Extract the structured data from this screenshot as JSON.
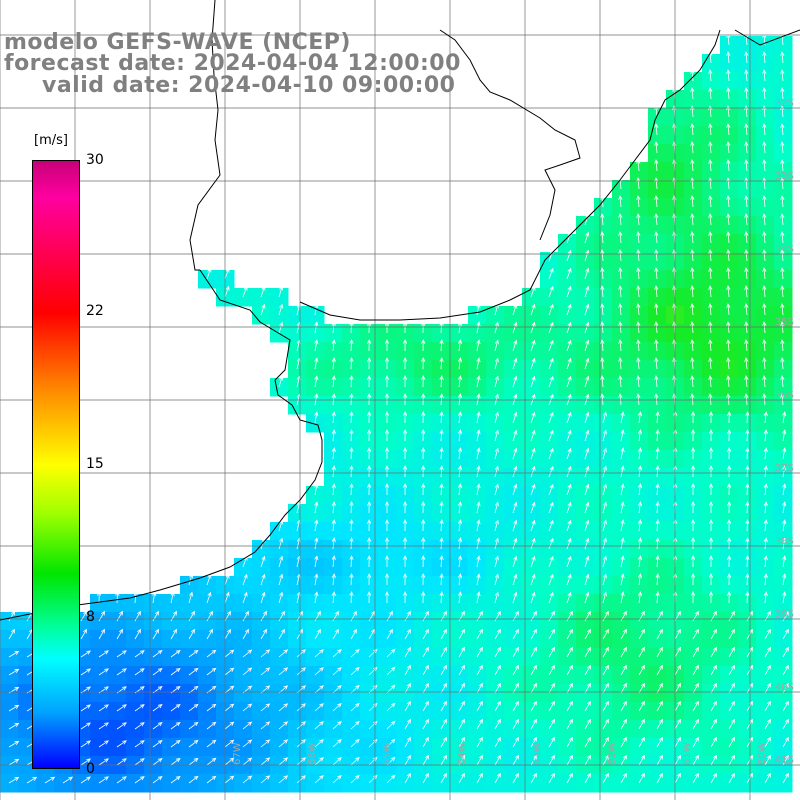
{
  "title": {
    "line1": "modelo GEFS-WAVE (NCEP)",
    "line2": "forecast date: 2024-04-04 12:00:00",
    "line3": "valid date: 2024-04-10 09:00:00"
  },
  "colorbar": {
    "unit": "[m/s]",
    "ticks": [
      "30",
      "22",
      "15",
      "8",
      "0"
    ],
    "tick_values": [
      30,
      22,
      15,
      8,
      0
    ]
  },
  "lat_labels": [
    "32S",
    "33S",
    "34S",
    "35S",
    "36S",
    "37S",
    "38S",
    "39S",
    "40S",
    "41S"
  ],
  "lon_labels": [
    "67W",
    "66W",
    "65W",
    "64W",
    "63W",
    "62W",
    "61W",
    "60W"
  ],
  "colors": {
    "land": "#ffffff",
    "grid": "#6e6e6e",
    "coast": "#000000",
    "arrow": "#ffffff",
    "blue": "#1f6bff",
    "cyan": "#19d7ff",
    "green": "#2ee64b"
  }
}
